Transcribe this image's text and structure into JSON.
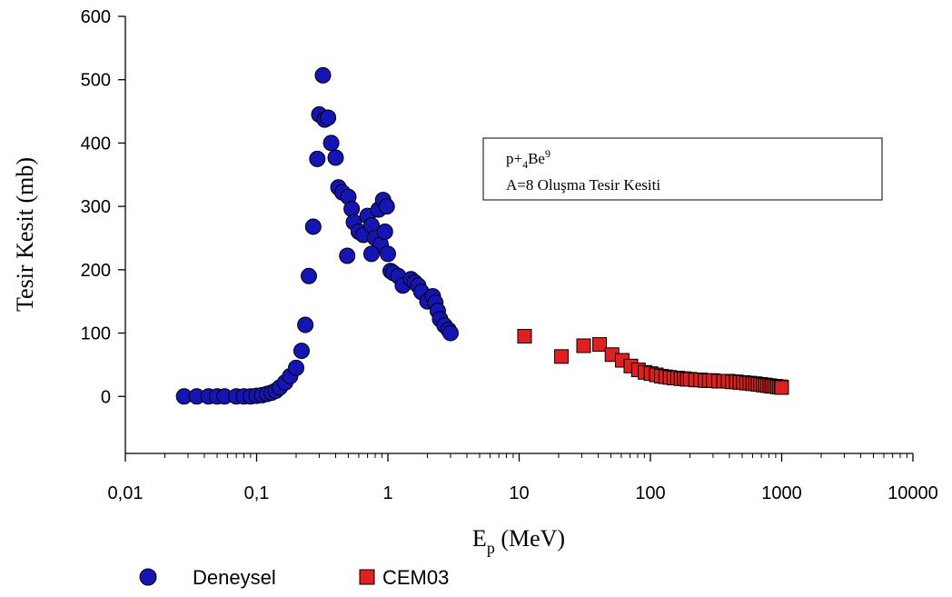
{
  "chart_data": {
    "type": "scatter",
    "xscale": "log",
    "xlim": [
      0.01,
      10000
    ],
    "ylim": [
      -90,
      600
    ],
    "xlabel_main": "E",
    "xlabel_sub": "p",
    "xlabel_unit": " (MeV)",
    "ylabel": "Tesir Kesit (mb)",
    "x_ticks": [
      0.01,
      0.1,
      1,
      10,
      100,
      1000,
      10000
    ],
    "x_tick_labels": [
      "0,01",
      "0,1",
      "1",
      "10",
      "100",
      "1000",
      "10000"
    ],
    "y_ticks": [
      0,
      100,
      200,
      300,
      400,
      500,
      600
    ],
    "y_tick_labels": [
      "0",
      "100",
      "200",
      "300",
      "400",
      "500",
      "600"
    ],
    "grid": false,
    "legend_position": "bottom-left",
    "annotation": {
      "line1_a": "p+",
      "line1_sub": "4",
      "line1_b": "Be",
      "line1_sup": "9",
      "line2": "A=8 Oluşma Tesir Kesiti"
    },
    "series": [
      {
        "name": "Deneysel",
        "marker": "circle",
        "color": "#1515b4",
        "points": [
          [
            0.028,
            0
          ],
          [
            0.035,
            0
          ],
          [
            0.043,
            0
          ],
          [
            0.05,
            0
          ],
          [
            0.057,
            0
          ],
          [
            0.07,
            0
          ],
          [
            0.08,
            0
          ],
          [
            0.09,
            0
          ],
          [
            0.1,
            1
          ],
          [
            0.11,
            2
          ],
          [
            0.12,
            4
          ],
          [
            0.13,
            6
          ],
          [
            0.14,
            9
          ],
          [
            0.15,
            14
          ],
          [
            0.165,
            22
          ],
          [
            0.18,
            32
          ],
          [
            0.2,
            45
          ],
          [
            0.22,
            72
          ],
          [
            0.235,
            113
          ],
          [
            0.25,
            190
          ],
          [
            0.27,
            268
          ],
          [
            0.29,
            375
          ],
          [
            0.3,
            445
          ],
          [
            0.32,
            507
          ],
          [
            0.33,
            437
          ],
          [
            0.35,
            440
          ],
          [
            0.37,
            400
          ],
          [
            0.4,
            377
          ],
          [
            0.42,
            330
          ],
          [
            0.45,
            322
          ],
          [
            0.5,
            315
          ],
          [
            0.53,
            296
          ],
          [
            0.55,
            275
          ],
          [
            0.6,
            260
          ],
          [
            0.65,
            255
          ],
          [
            0.7,
            285
          ],
          [
            0.75,
            270
          ],
          [
            0.8,
            250
          ],
          [
            0.85,
            295
          ],
          [
            0.88,
            240
          ],
          [
            0.92,
            310
          ],
          [
            0.95,
            260
          ],
          [
            0.98,
            300
          ],
          [
            1.0,
            225
          ],
          [
            1.05,
            198
          ],
          [
            1.1,
            195
          ],
          [
            1.2,
            190
          ],
          [
            1.3,
            175
          ],
          [
            1.5,
            185
          ],
          [
            1.6,
            180
          ],
          [
            1.7,
            175
          ],
          [
            1.8,
            165
          ],
          [
            2.0,
            150
          ],
          [
            2.2,
            158
          ],
          [
            2.3,
            148
          ],
          [
            2.4,
            135
          ],
          [
            2.5,
            122
          ],
          [
            2.7,
            112
          ],
          [
            2.9,
            105
          ],
          [
            3.0,
            100
          ],
          [
            0.49,
            222
          ],
          [
            0.75,
            225
          ]
        ]
      },
      {
        "name": "CEM03",
        "marker": "square",
        "color": "#e02020",
        "points": [
          [
            11,
            95
          ],
          [
            21,
            63
          ],
          [
            31,
            80
          ],
          [
            41,
            82
          ],
          [
            51,
            66
          ],
          [
            61,
            57
          ],
          [
            71,
            48
          ],
          [
            81,
            42
          ],
          [
            91,
            38
          ],
          [
            101,
            36
          ],
          [
            111,
            34
          ],
          [
            121,
            32
          ],
          [
            131,
            31
          ],
          [
            141,
            30
          ],
          [
            151,
            29
          ],
          [
            161,
            29
          ],
          [
            171,
            28
          ],
          [
            181,
            28
          ],
          [
            191,
            27
          ],
          [
            201,
            27
          ],
          [
            221,
            26
          ],
          [
            241,
            26
          ],
          [
            261,
            25
          ],
          [
            281,
            25
          ],
          [
            301,
            25
          ],
          [
            331,
            24
          ],
          [
            361,
            24
          ],
          [
            391,
            24
          ],
          [
            421,
            23
          ],
          [
            451,
            23
          ],
          [
            481,
            22
          ],
          [
            511,
            22
          ],
          [
            541,
            21
          ],
          [
            571,
            21
          ],
          [
            601,
            20
          ],
          [
            631,
            20
          ],
          [
            661,
            19
          ],
          [
            691,
            19
          ],
          [
            721,
            18
          ],
          [
            751,
            18
          ],
          [
            781,
            17
          ],
          [
            811,
            17
          ],
          [
            841,
            16
          ],
          [
            871,
            16
          ],
          [
            901,
            16
          ],
          [
            931,
            15
          ],
          [
            961,
            15
          ],
          [
            991,
            15
          ],
          [
            1000,
            14
          ]
        ]
      }
    ]
  }
}
